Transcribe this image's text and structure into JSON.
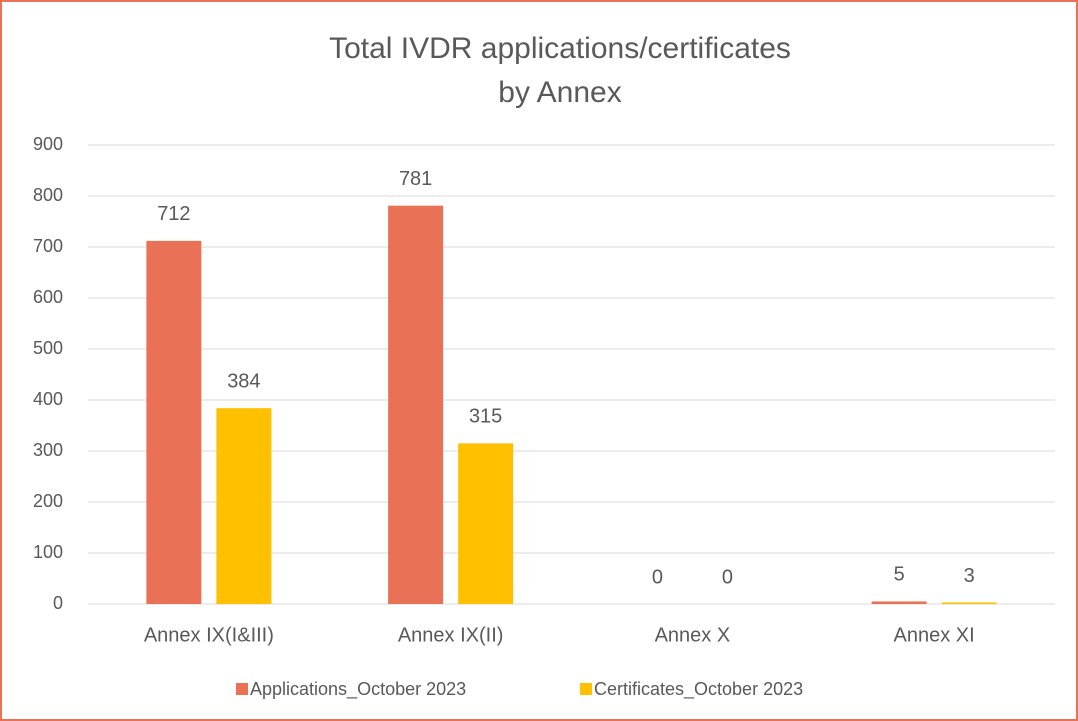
{
  "chart_data": {
    "type": "bar",
    "title": [
      "Total IVDR applications/certificates",
      "by Annex"
    ],
    "categories": [
      "Annex IX(I&III)",
      "Annex IX(II)",
      "Annex X",
      "Annex XI"
    ],
    "series": [
      {
        "name": "Applications_October 2023",
        "color": "#e97155",
        "values": [
          712,
          781,
          0,
          5
        ]
      },
      {
        "name": "Certificates_October 2023",
        "color": "#ffc000",
        "values": [
          384,
          315,
          0,
          3
        ]
      }
    ],
    "ylim": [
      0,
      900
    ],
    "yticks": [
      0,
      100,
      200,
      300,
      400,
      500,
      600,
      700,
      800,
      900
    ],
    "grid": true,
    "legend": "bottom"
  }
}
